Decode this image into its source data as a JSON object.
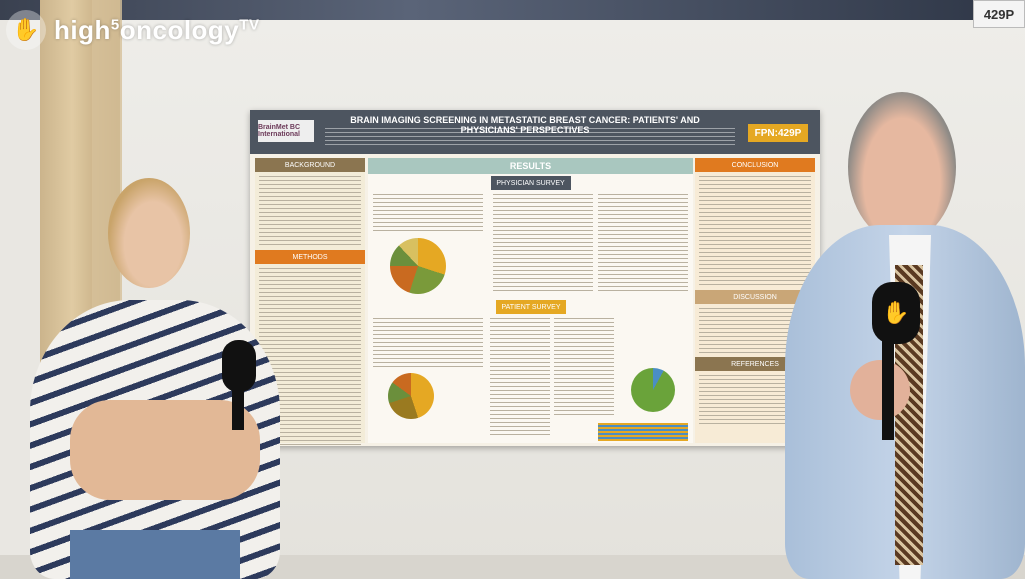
{
  "overlay": {
    "brand_name": "high",
    "brand_sup": "5",
    "brand_name2": "oncology",
    "brand_tv": "TV"
  },
  "booth_number": "429P",
  "poster": {
    "organisation": "BrainMet BC International",
    "title": "BRAIN IMAGING SCREENING IN METASTATIC BREAST CANCER: PATIENTS' AND PHYSICIANS' PERSPECTIVES",
    "badge": "FPN:429P",
    "sections": {
      "background": "BACKGROUND",
      "methods": "METHODS",
      "results": "RESULTS",
      "physician_survey": "PHYSICIAN SURVEY",
      "patient_survey": "PATIENT SURVEY",
      "conclusion": "CONCLUSION",
      "discussion": "DISCUSSION",
      "references": "REFERENCES"
    }
  },
  "colors": {
    "background_header": "#8b7550",
    "results_header": "#a9c7bf",
    "conclusion_header": "#e07a1f",
    "poster_header": "#4d5560",
    "badge": "#e5a823"
  }
}
